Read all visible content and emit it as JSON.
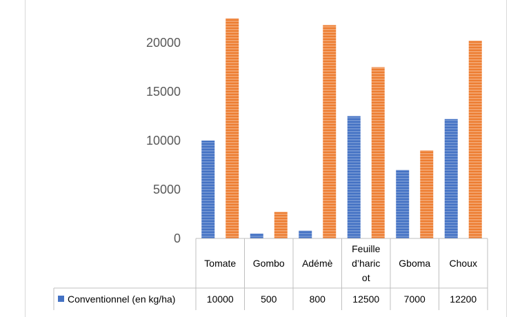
{
  "chart_data": {
    "type": "bar",
    "categories": [
      "Tomate",
      "Gombo",
      "Adémè",
      "Feuille d’haricot",
      "Gboma",
      "Choux"
    ],
    "category_lines": [
      [
        "Tomate"
      ],
      [
        "Gombo"
      ],
      [
        "Adémè"
      ],
      [
        "Feuille",
        "d’haric",
        "ot"
      ],
      [
        "Gboma"
      ],
      [
        "Choux"
      ]
    ],
    "series": [
      {
        "name": "Conventionnel (en kg/ha)",
        "values": [
          10000,
          500,
          800,
          12500,
          7000,
          12200
        ],
        "color": "#4472c4",
        "shown_in_table": true
      },
      {
        "values": [
          22500,
          2700,
          21800,
          17500,
          9000,
          20200
        ],
        "color": "#ed7d31",
        "shown_in_table": false
      }
    ],
    "yticks": [
      0,
      5000,
      10000,
      15000,
      20000
    ],
    "ylim": [
      0,
      25000
    ],
    "grid": false,
    "legend": "data table (bottom)",
    "has_data_table": true
  }
}
